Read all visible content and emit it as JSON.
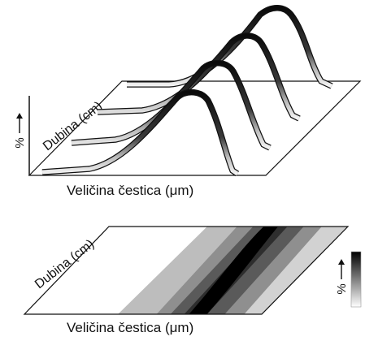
{
  "top_panel": {
    "depth_label": "Dubina (cm)",
    "percent_label": "%",
    "size_label": "Veličina čestica (μm)"
  },
  "bottom_panel": {
    "depth_label": "Dubina (cm)",
    "percent_label": "%",
    "size_label": "Veličina čestica (μm)"
  },
  "colors": {
    "background": "#ffffff",
    "outline": "#111111",
    "curve_dark": "#0a0a0a",
    "curve_light": "#f4f4f4"
  },
  "contour_levels": [
    "#ffffff",
    "#bdbdbd",
    "#8a8a8a",
    "#5a5a5a",
    "#2e2e2e",
    "#000000"
  ]
}
